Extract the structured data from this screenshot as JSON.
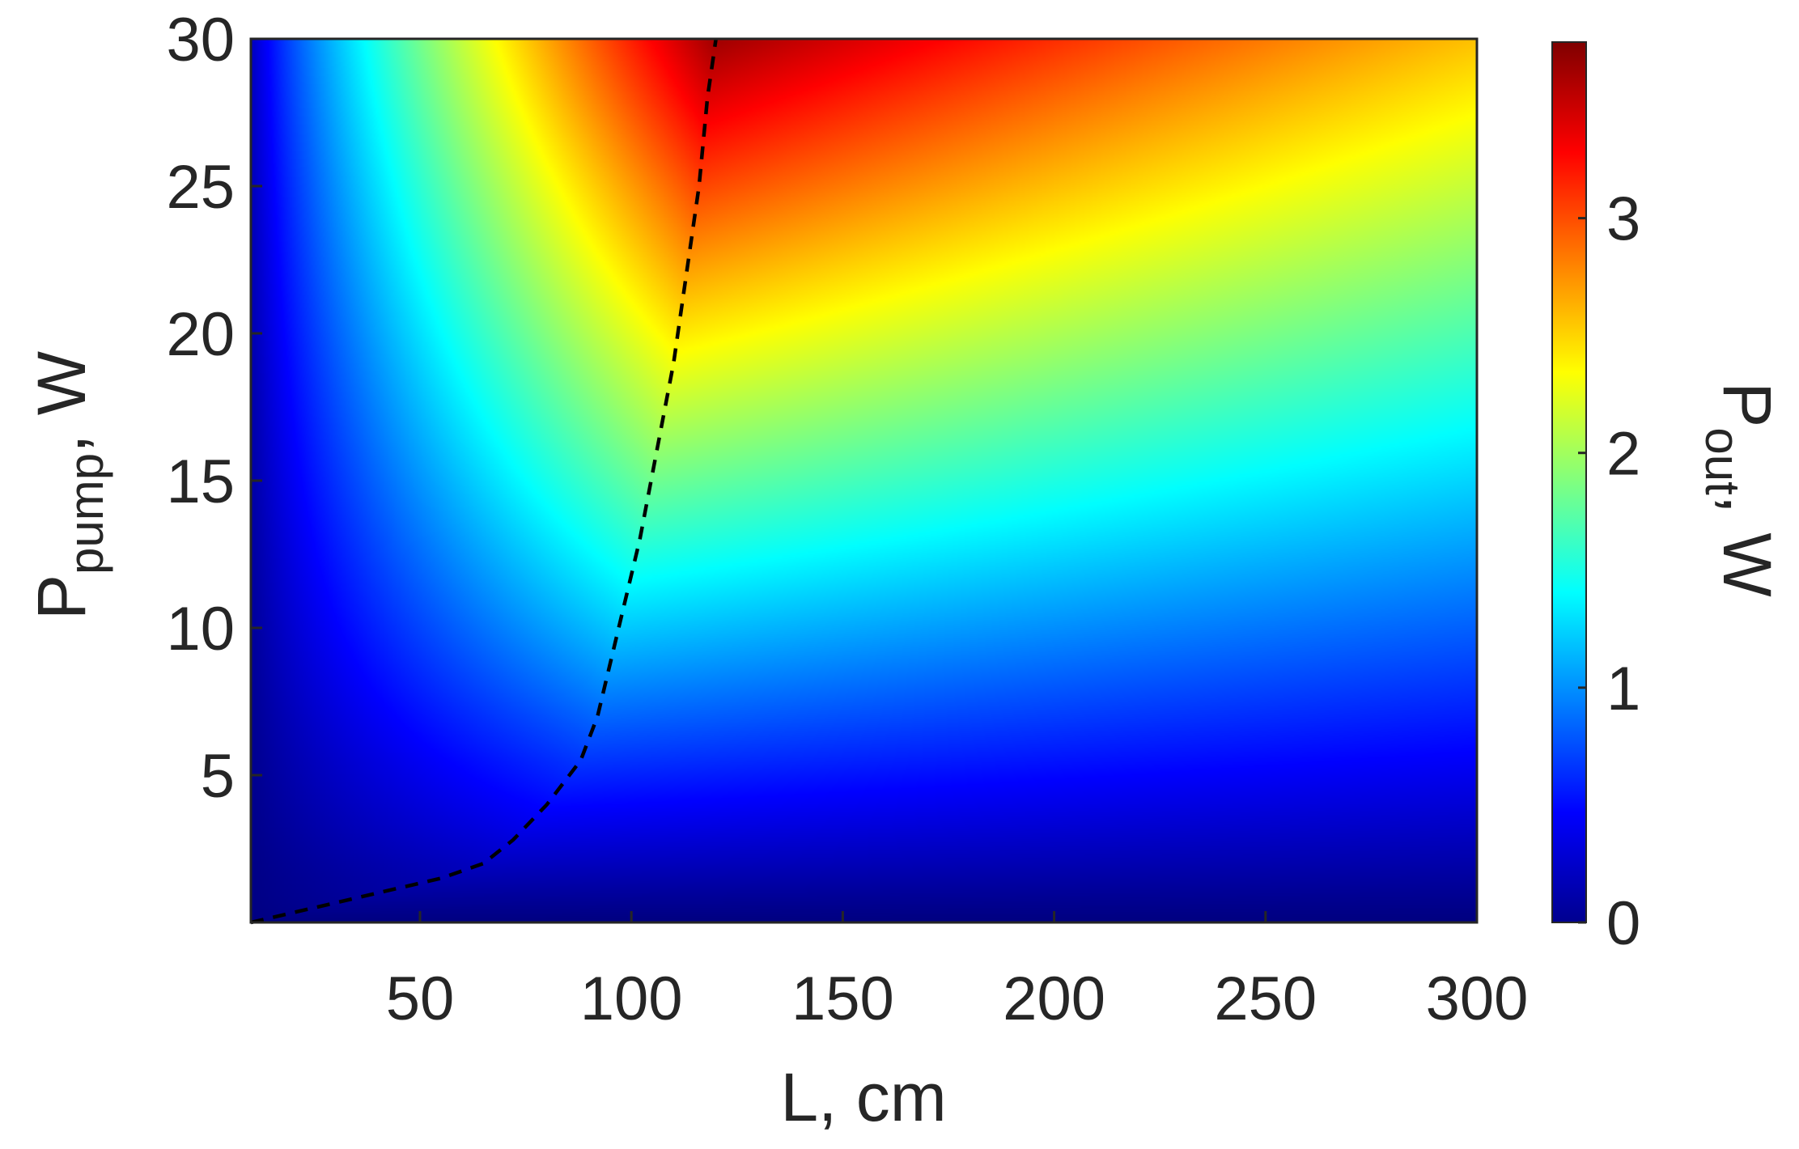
{
  "chart_data": {
    "type": "heatmap",
    "colormap": "jet",
    "x_axis": {
      "label_main": "L, cm",
      "range": [
        10,
        300
      ],
      "ticks": [
        50,
        100,
        150,
        200,
        250,
        300
      ],
      "tick_labels": [
        "50",
        "100",
        "150",
        "200",
        "250",
        "300"
      ]
    },
    "y_axis": {
      "label_main": "P",
      "label_sub": "pump",
      "label_tail": ", W",
      "range": [
        0,
        30
      ],
      "ticks": [
        5,
        10,
        15,
        20,
        25,
        30
      ],
      "tick_labels": [
        "5",
        "10",
        "15",
        "20",
        "25",
        "30"
      ]
    },
    "colorbar": {
      "label_main": "P",
      "label_sub": "out",
      "label_tail": ", W",
      "range": [
        0,
        3.75
      ],
      "ticks": [
        0,
        1,
        2,
        3
      ],
      "tick_labels": [
        "0",
        "1",
        "2",
        "3"
      ]
    },
    "optimal_length_curve": {
      "style": "dashed",
      "color": "#000000",
      "x": [
        10,
        25,
        40,
        55,
        65,
        72,
        80,
        88,
        92,
        97,
        102,
        106,
        110,
        113,
        116,
        118,
        120
      ],
      "y": [
        0,
        0.5,
        1.0,
        1.5,
        2.0,
        2.8,
        4.0,
        5.5,
        7.0,
        10.0,
        13.0,
        16.0,
        19.0,
        22.0,
        25.0,
        28.0,
        30.0
      ]
    },
    "surface_model": {
      "description_of_colors": "output power rises with pump; peak near L≈120 cm at high pump",
      "peak_value": 3.75
    }
  }
}
